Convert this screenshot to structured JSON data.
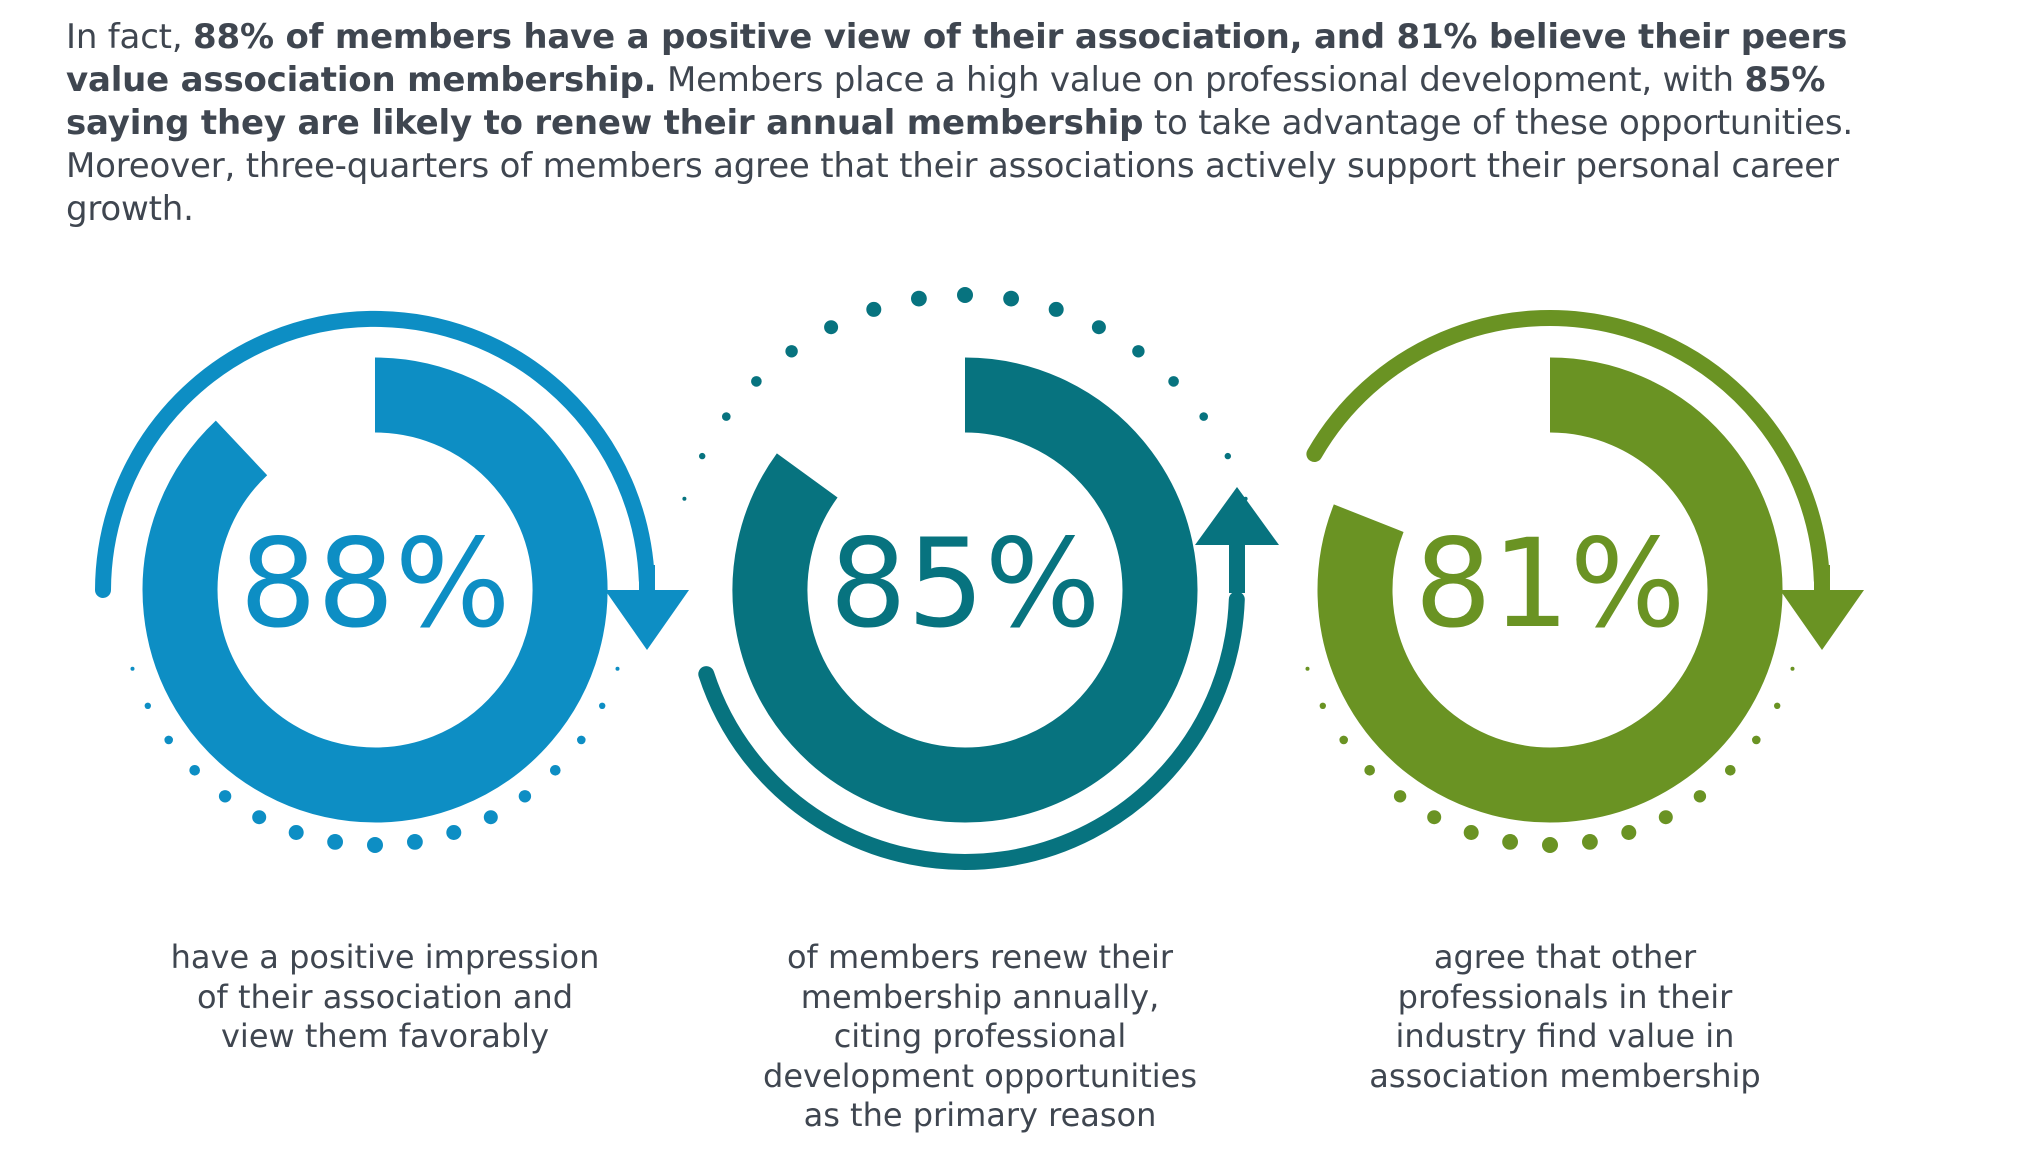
{
  "intro": {
    "segments": [
      {
        "text": "In fact, ",
        "bold": false
      },
      {
        "text": "88% of members have a positive view of their association, and 81% believe their peers value association membership.",
        "bold": true
      },
      {
        "text": " Members place a high value on professional development, with ",
        "bold": false
      },
      {
        "text": "85% saying they are likely to renew their annual membership",
        "bold": true
      },
      {
        "text": " to take advantage of these opportunities. Moreover, three-quarters of members agree that their associations actively support their personal career growth.",
        "bold": false
      }
    ]
  },
  "stats": [
    {
      "value": 88,
      "label": "88%",
      "color": "#0d8ec4",
      "caption": "have a positive impression of their association and view them favorably"
    },
    {
      "value": 85,
      "label": "85%",
      "color": "#07737f",
      "caption": "of members renew their membership annually, citing professional development opportunities as the primary reason"
    },
    {
      "value": 81,
      "label": "81%",
      "color": "#6a9323",
      "caption": "agree that other professionals in their industry find value in association membership"
    }
  ]
}
